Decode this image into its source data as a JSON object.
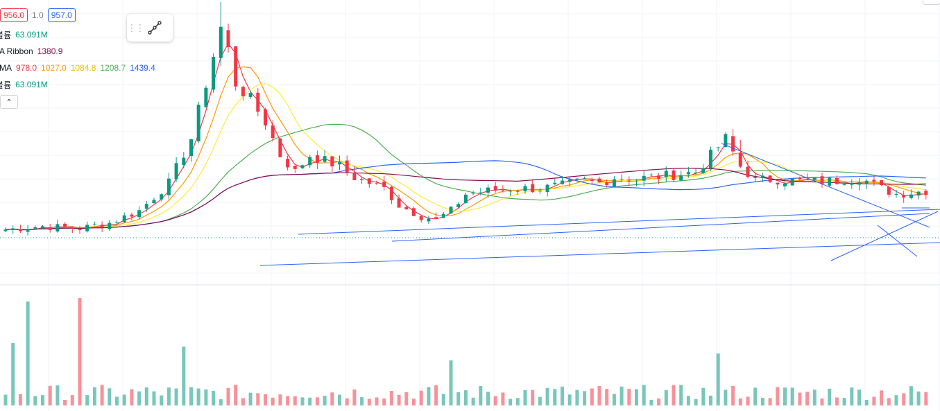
{
  "legend": {
    "price": {
      "bid": "956.0",
      "spread": "1.0",
      "ask": "957.0"
    },
    "volume1": {
      "label": "볼륨",
      "value": "63.091M"
    },
    "ribbon": {
      "label": "MA Ribbon",
      "value": "1380.9"
    },
    "sma": {
      "label": "SMA",
      "values": [
        "978.0",
        "1027.0",
        "1084.8",
        "1208.7",
        "1439.4"
      ]
    },
    "volume2": {
      "label": "볼륨",
      "value": "63.091M"
    }
  },
  "colors": {
    "up": "#089981",
    "down": "#f23645",
    "sma1": "#f23645",
    "sma2": "#ff9800",
    "sma3": "#ffeb3b",
    "sma4": "#4caf50",
    "sma5": "#2962ff",
    "ribbon": "#880e4f",
    "trendline": "#2962ff",
    "last_price": "#089981"
  },
  "icons": {
    "collapse": "chevron-up-icon",
    "drag": "drag-handle-icon",
    "tool": "trend-line-icon"
  },
  "chart_data": {
    "type": "candlestick",
    "x_axis": "time (no labels visible)",
    "y_axis": "price (no labels visible)",
    "grid": true,
    "last_price": 956.0,
    "price_path": [
      [
        0,
        1380
      ],
      [
        5,
        1410
      ],
      [
        10,
        1390
      ],
      [
        14,
        1440
      ],
      [
        18,
        1550
      ],
      [
        22,
        1800
      ],
      [
        25,
        2200
      ],
      [
        27,
        2700
      ],
      [
        29,
        3200
      ],
      [
        30,
        3000
      ],
      [
        31,
        2700
      ],
      [
        33,
        2550
      ],
      [
        35,
        2350
      ],
      [
        37,
        2050
      ],
      [
        39,
        1900
      ],
      [
        41,
        2050
      ],
      [
        43,
        2000
      ],
      [
        45,
        1950
      ],
      [
        47,
        1850
      ],
      [
        49,
        1800
      ],
      [
        51,
        1750
      ],
      [
        53,
        1600
      ],
      [
        56,
        1500
      ],
      [
        58,
        1470
      ],
      [
        60,
        1550
      ],
      [
        62,
        1700
      ],
      [
        65,
        1730
      ],
      [
        68,
        1750
      ],
      [
        72,
        1750
      ],
      [
        75,
        1780
      ],
      [
        78,
        1820
      ],
      [
        80,
        1800
      ],
      [
        82,
        1850
      ],
      [
        85,
        1840
      ],
      [
        88,
        1860
      ],
      [
        91,
        1880
      ],
      [
        93,
        1900
      ],
      [
        95,
        2050
      ],
      [
        97,
        2200
      ],
      [
        99,
        1950
      ],
      [
        101,
        1830
      ],
      [
        104,
        1830
      ],
      [
        108,
        1810
      ],
      [
        112,
        1820
      ],
      [
        115,
        1850
      ],
      [
        118,
        1750
      ],
      [
        120,
        1700
      ],
      [
        124,
        1730
      ]
    ],
    "volume_pattern": "spikes near bars 3, 10, 24, 60, 96"
  }
}
